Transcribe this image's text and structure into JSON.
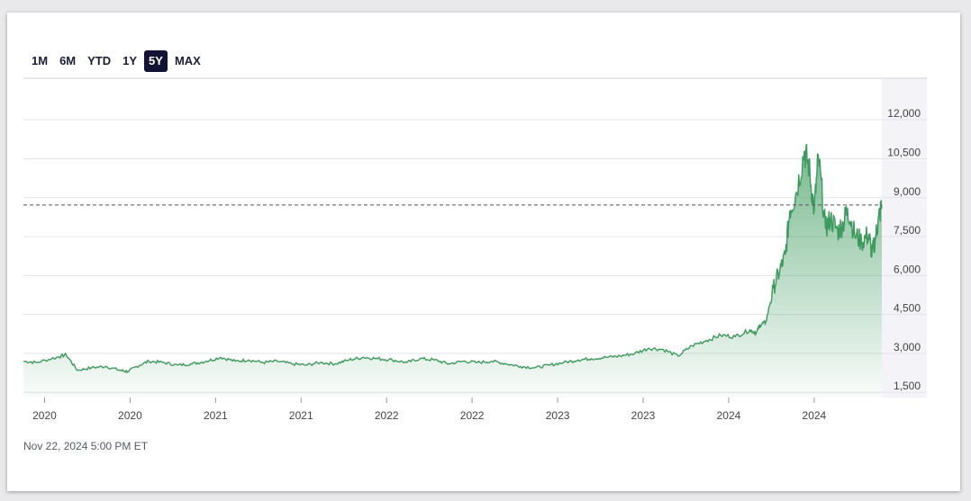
{
  "range_buttons": [
    {
      "label": "1M",
      "active": false
    },
    {
      "label": "6M",
      "active": false
    },
    {
      "label": "YTD",
      "active": false
    },
    {
      "label": "1Y",
      "active": false
    },
    {
      "label": "5Y",
      "active": true
    },
    {
      "label": "MAX",
      "active": false
    }
  ],
  "footer": {
    "timestamp": "Nov 22, 2024 5:00 PM ET"
  },
  "chart_data": {
    "type": "area",
    "title": "",
    "xlabel": "",
    "ylabel": "",
    "y_ticks": [
      1500,
      3000,
      4500,
      6000,
      7500,
      9000,
      10500,
      12000
    ],
    "y_tick_labels": [
      "1,500",
      "3,000",
      "4,500",
      "6,000",
      "7,500",
      "9,000",
      "10,500",
      "12,000"
    ],
    "ylim": [
      1300,
      13600
    ],
    "x_ticks": [
      "2020-01-06",
      "2020-07-06",
      "2021-01-04",
      "2021-07-05",
      "2022-01-03",
      "2022-07-04",
      "2023-01-02",
      "2023-07-03",
      "2024-01-01",
      "2024-07-01"
    ],
    "x_tick_labels": [
      "2020",
      "2020",
      "2021",
      "2021",
      "2022",
      "2022",
      "2023",
      "2023",
      "2024",
      "2024"
    ],
    "xlim": [
      "2019-11-22",
      "2024-11-22"
    ],
    "reference_line": 8720,
    "grid": true,
    "color": "#3d9a5e",
    "series": [
      {
        "x": [
          "2019-11-22",
          "2019-12-20",
          "2020-02-01",
          "2020-02-21",
          "2020-03-16",
          "2020-04-15",
          "2020-05-15",
          "2020-06-15",
          "2020-07-01",
          "2020-07-20",
          "2020-08-15",
          "2020-09-15",
          "2020-10-15",
          "2020-11-15",
          "2020-12-15",
          "2021-01-15",
          "2021-02-15",
          "2021-03-15",
          "2021-04-15",
          "2021-05-15",
          "2021-06-15",
          "2021-07-15",
          "2021-08-15",
          "2021-09-15",
          "2021-10-15",
          "2021-11-15",
          "2021-12-15",
          "2022-01-15",
          "2022-02-15",
          "2022-03-15",
          "2022-04-15",
          "2022-05-15",
          "2022-06-15",
          "2022-07-15",
          "2022-08-15",
          "2022-09-15",
          "2022-10-15",
          "2022-11-15",
          "2022-12-15",
          "2023-01-15",
          "2023-02-15",
          "2023-03-15",
          "2023-04-15",
          "2023-05-15",
          "2023-06-15",
          "2023-07-15",
          "2023-08-15",
          "2023-09-15",
          "2023-10-15",
          "2023-11-15",
          "2023-12-15",
          "2024-01-15",
          "2024-02-15",
          "2024-02-29",
          "2024-03-08",
          "2024-03-20",
          "2024-04-05",
          "2024-04-19",
          "2024-05-01",
          "2024-05-10",
          "2024-05-24",
          "2024-06-10",
          "2024-06-20",
          "2024-07-01",
          "2024-07-10",
          "2024-07-25",
          "2024-08-05",
          "2024-08-20",
          "2024-09-01",
          "2024-09-10",
          "2024-09-25",
          "2024-10-10",
          "2024-10-25",
          "2024-11-01",
          "2024-11-08",
          "2024-11-15",
          "2024-11-22"
        ],
        "values": [
          2700,
          2650,
          2850,
          2950,
          2350,
          2450,
          2500,
          2350,
          2300,
          2500,
          2700,
          2650,
          2550,
          2600,
          2700,
          2850,
          2700,
          2750,
          2650,
          2700,
          2600,
          2550,
          2650,
          2600,
          2750,
          2850,
          2800,
          2750,
          2650,
          2800,
          2750,
          2600,
          2700,
          2650,
          2700,
          2600,
          2500,
          2450,
          2550,
          2650,
          2750,
          2800,
          2850,
          2900,
          3000,
          3200,
          3150,
          2900,
          3300,
          3500,
          3700,
          3650,
          3900,
          3800,
          4100,
          4200,
          5500,
          6200,
          6800,
          8500,
          9200,
          10800,
          10200,
          8500,
          10600,
          7800,
          8200,
          7700,
          8000,
          8600,
          7600,
          7300,
          7600,
          6800,
          7400,
          8200,
          8700
        ]
      }
    ]
  }
}
